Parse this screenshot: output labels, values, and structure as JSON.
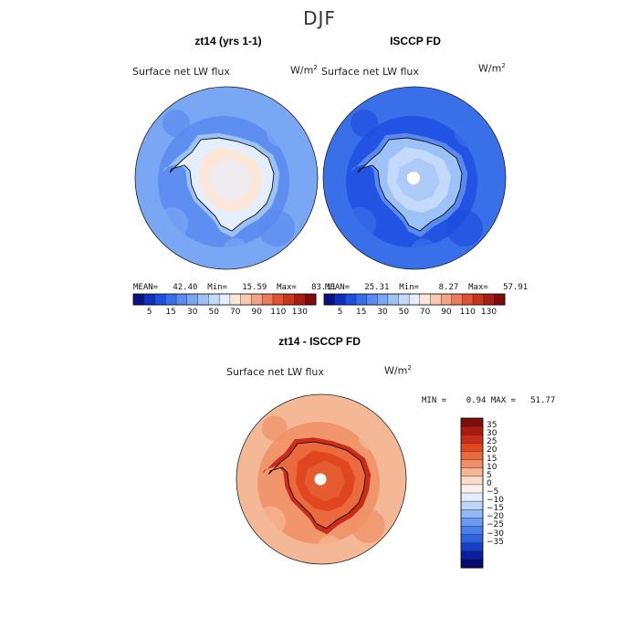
{
  "season": "DJF",
  "colors": {
    "sequential": [
      "#0a1180",
      "#0f2fbe",
      "#1e4fe0",
      "#3a6fea",
      "#5a8af0",
      "#7aa7f4",
      "#9dc2f7",
      "#c3dafa",
      "#e5eefc",
      "#fbe6d8",
      "#f7c9ad",
      "#f2a384",
      "#ea7c5c",
      "#e0532f",
      "#c8341c",
      "#a71d12",
      "#7d0d0a"
    ],
    "diverging": [
      "#7d0d0a",
      "#a91a10",
      "#cc2c16",
      "#e0461f",
      "#ea6a3d",
      "#f08f65",
      "#f5b896",
      "#fadccb",
      "#fbf0ea",
      "#e3eefc",
      "#bcd5f8",
      "#90b8f4",
      "#6a9bf0",
      "#4a7fea",
      "#2f62e0",
      "#1840c6",
      "#0a1fa0",
      "#040c6e"
    ]
  },
  "chart_data": [
    {
      "type": "heatmap",
      "title": "zt14 (yrs 1-1)",
      "subtitle": "Surface net LW flux",
      "units": "W/m",
      "units_exp": "2",
      "stats": {
        "mean": "42.40",
        "min": "15.59",
        "max": "83.11",
        "text": "MEAN=   42.40  Min=   15.59  Max=   83.11"
      },
      "colorbar_ticks": [
        "5",
        "15",
        "30",
        "50",
        "70",
        "90",
        "110",
        "130"
      ],
      "colorbar_levels": 17,
      "projection": "south polar stereographic",
      "zones": {
        "ocean_far": 5,
        "ocean_near": 4,
        "coast": 6,
        "interior": 9,
        "interior_mid": 8
      }
    },
    {
      "type": "heatmap",
      "title": "ISCCP FD",
      "subtitle": "Surface net LW flux",
      "units": "W/m",
      "units_exp": "2",
      "stats": {
        "mean": "25.31",
        "min": "8.27",
        "max": "57.91",
        "text": "MEAN=   25.31  Min=    8.27  Max=   57.91"
      },
      "colorbar_ticks": [
        "5",
        "15",
        "30",
        "50",
        "70",
        "90",
        "110",
        "130"
      ],
      "colorbar_levels": 17,
      "projection": "south polar stereographic",
      "zones": {
        "ocean_far": 3,
        "ocean_near": 2,
        "coast": 4,
        "interior": 7,
        "interior_mid": 6
      }
    },
    {
      "type": "heatmap",
      "title": "zt14 - ISCCP FD",
      "subtitle": "Surface net LW flux",
      "units": "W/m",
      "units_exp": "2",
      "stats": {
        "min": "0.94",
        "max": "51.77",
        "text": "MIN =    0.94 MAX =   51.77"
      },
      "colorbar_ticks": [
        "35",
        "30",
        "25",
        "20",
        "15",
        "10",
        "5",
        "0",
        "−5",
        "−10",
        "−15",
        "−20",
        "−25",
        "−30",
        "−35"
      ],
      "colorbar_levels": 18,
      "projection": "south polar stereographic",
      "zones": {
        "ocean_far": 6,
        "ocean_near": 5,
        "coast": 2,
        "interior": 3,
        "interior_mid": 4
      }
    }
  ]
}
